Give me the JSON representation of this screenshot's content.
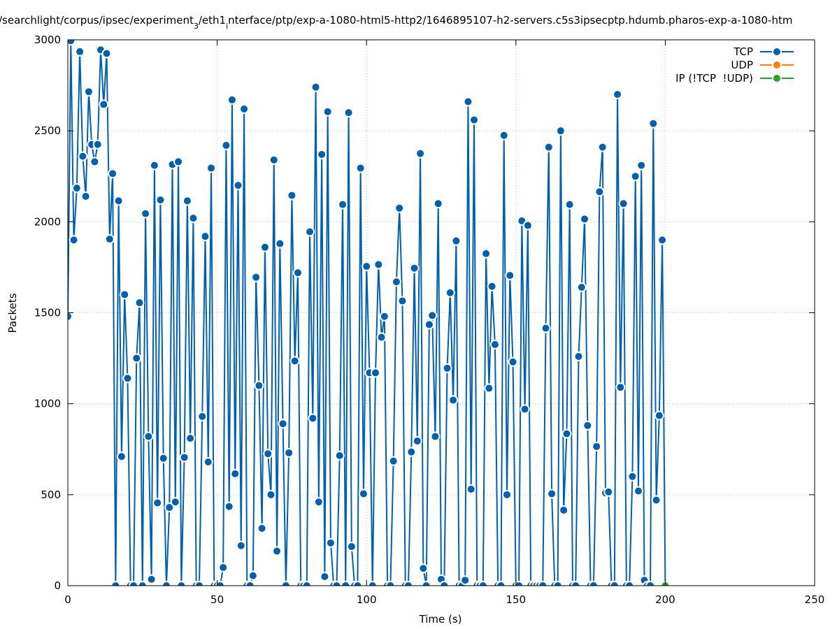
{
  "chart_data": {
    "type": "line",
    "title": [
      {
        "text": "/searchlight/corpus/ipsec/experiment",
        "subscript": false
      },
      {
        "text": "3",
        "subscript": true
      },
      {
        "text": "/eth1",
        "subscript": false
      },
      {
        "text": "i",
        "subscript": true
      },
      {
        "text": "nterface/ptp/exp-a-1080-html5-http2/1646895107-h2-servers.c5s3ipsecptp.hdumb.pharos-exp-a-1080-htm",
        "subscript": false
      }
    ],
    "x_label": "Time (s)",
    "y_label": "Packets",
    "xlim": [
      0,
      250
    ],
    "xticks": [
      0,
      50,
      100,
      150,
      200,
      250
    ],
    "ylim": [
      0,
      3000
    ],
    "yticks": [
      0,
      500,
      1000,
      1500,
      2000,
      2500,
      3000
    ],
    "grid": true,
    "legend": "top-right",
    "series": [
      {
        "name": "TCP",
        "color": "#0060ad",
        "x": [
          0,
          1,
          2,
          3,
          4,
          5,
          6,
          7,
          8,
          9,
          10,
          11,
          12,
          13,
          14,
          15,
          16,
          17,
          18,
          19,
          20,
          21,
          22,
          23,
          24,
          25,
          26,
          27,
          28,
          29,
          30,
          31,
          32,
          33,
          34,
          35,
          36,
          37,
          38,
          39,
          40,
          41,
          42,
          43,
          44,
          45,
          46,
          47,
          48,
          49,
          50,
          51,
          52,
          53,
          54,
          55,
          56,
          57,
          58,
          59,
          60,
          61,
          62,
          63,
          64,
          65,
          66,
          67,
          68,
          69,
          70,
          71,
          72,
          73,
          74,
          75,
          76,
          77,
          78,
          79,
          80,
          81,
          82,
          83,
          84,
          85,
          86,
          87,
          88,
          89,
          90,
          91,
          92,
          93,
          94,
          95,
          96,
          97,
          98,
          99,
          100,
          101,
          102,
          103,
          104,
          105,
          106,
          107,
          108,
          109,
          110,
          111,
          112,
          113,
          114,
          115,
          116,
          117,
          118,
          119,
          120,
          121,
          122,
          123,
          124,
          125,
          126,
          127,
          128,
          129,
          130,
          131,
          132,
          133,
          134,
          135,
          136,
          137,
          138,
          139,
          140,
          141,
          142,
          143,
          144,
          145,
          146,
          147,
          148,
          149,
          150,
          151,
          152,
          153,
          154,
          155,
          156,
          157,
          158,
          159,
          160,
          161,
          162,
          163,
          164,
          165,
          166,
          167,
          168,
          169,
          170,
          171,
          172,
          173,
          174,
          175,
          176,
          177,
          178,
          179,
          180,
          181,
          182,
          183,
          184,
          185,
          186,
          187,
          188,
          189,
          190,
          191,
          192,
          193,
          194,
          195,
          196,
          197,
          198,
          199,
          200
        ],
        "values": [
          1480,
          2995,
          1900,
          2185,
          2935,
          2360,
          2140,
          2715,
          2425,
          2330,
          2425,
          2945,
          2645,
          2925,
          1905,
          2265,
          0,
          2115,
          710,
          1600,
          1140,
          0,
          0,
          1250,
          1555,
          0,
          2045,
          820,
          35,
          2310,
          455,
          2120,
          700,
          0,
          430,
          2315,
          460,
          2330,
          0,
          705,
          2115,
          810,
          2020,
          0,
          0,
          930,
          1920,
          680,
          2295,
          0,
          0,
          0,
          100,
          2420,
          435,
          2670,
          615,
          2200,
          220,
          2620,
          0,
          0,
          55,
          1695,
          1100,
          315,
          1860,
          725,
          500,
          2340,
          190,
          1880,
          890,
          0,
          730,
          2145,
          1235,
          1720,
          0,
          0,
          0,
          1945,
          920,
          2740,
          460,
          2370,
          50,
          2605,
          235,
          0,
          0,
          715,
          2095,
          0,
          2600,
          215,
          0,
          0,
          2295,
          505,
          1755,
          1170,
          0,
          1170,
          1765,
          1365,
          1480,
          0,
          0,
          685,
          1670,
          2075,
          1565,
          0,
          0,
          735,
          1745,
          795,
          2375,
          95,
          0,
          1435,
          1485,
          820,
          2100,
          35,
          0,
          1195,
          1610,
          1020,
          1895,
          0,
          0,
          30,
          2660,
          530,
          2560,
          0,
          0,
          0,
          1825,
          1085,
          1645,
          1325,
          0,
          0,
          2475,
          500,
          1705,
          1230,
          0,
          0,
          2005,
          970,
          1980,
          0,
          0,
          0,
          0,
          0,
          1415,
          2410,
          505,
          0,
          0,
          2500,
          415,
          835,
          2095,
          0,
          0,
          1260,
          1640,
          2015,
          880,
          0,
          0,
          765,
          2165,
          2410,
          510,
          515,
          0,
          0,
          2700,
          1090,
          2100,
          0,
          0,
          600,
          2250,
          520,
          2310,
          30,
          0,
          0,
          2540,
          470,
          935,
          1900,
          0
        ]
      },
      {
        "name": "UDP",
        "color": "#ff7f0e",
        "x": [],
        "values": []
      },
      {
        "name": "IP (!TCP  !UDP)",
        "color": "#2ca02c",
        "x": [
          200
        ],
        "values": [
          0
        ]
      }
    ]
  }
}
